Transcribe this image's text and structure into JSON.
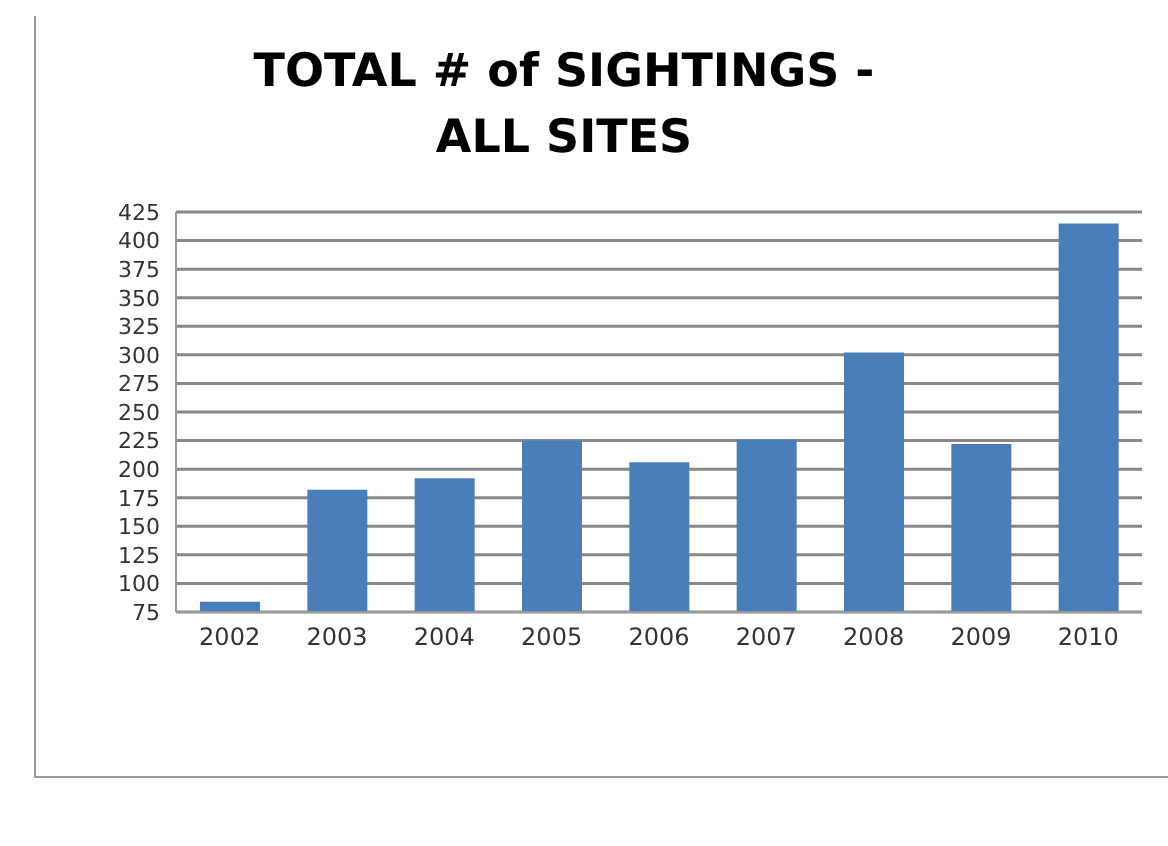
{
  "chart_data": {
    "type": "bar",
    "title": "TOTAL # of SIGHTINGS -\nALL SITES",
    "categories": [
      "2002",
      "2003",
      "2004",
      "2005",
      "2006",
      "2007",
      "2008",
      "2009",
      "2010"
    ],
    "values": [
      84,
      182,
      192,
      225,
      206,
      226,
      302,
      222,
      415
    ],
    "color": "#4a7ebb",
    "ylim": [
      75,
      425
    ],
    "yticks": [
      75,
      100,
      125,
      150,
      175,
      200,
      225,
      250,
      275,
      300,
      325,
      350,
      375,
      400,
      425
    ],
    "grid": "y"
  }
}
